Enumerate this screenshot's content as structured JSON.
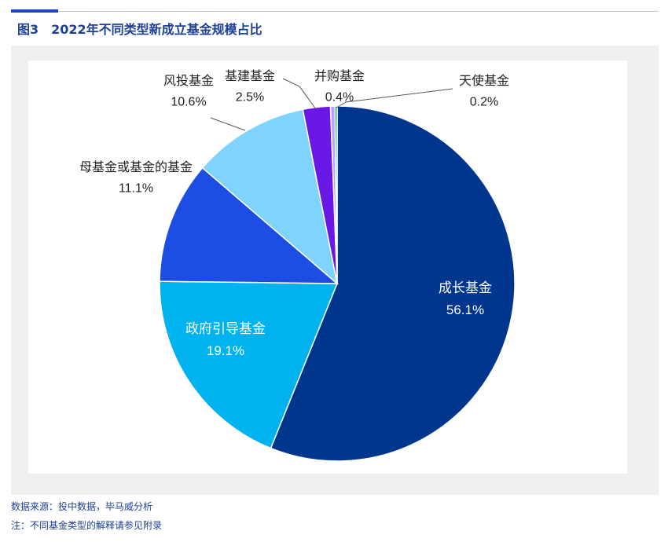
{
  "figure": {
    "label": "图3",
    "title": "2022年不同类型新成立基金规模占比"
  },
  "source_note": "数据来源：投中数据，毕马威分析",
  "footnote": "注：不同基金类型的解释请参见附录",
  "chart_data": {
    "type": "pie",
    "title": "2022年不同类型新成立基金规模占比",
    "start_angle_deg": 0,
    "direction": "clockwise",
    "label_format": "{name}\n{pct}",
    "slices": [
      {
        "name": "成长基金",
        "value": 56.1,
        "label": "56.1%",
        "color": "#00368e"
      },
      {
        "name": "政府引导基金",
        "value": 19.1,
        "label": "19.1%",
        "color": "#00b2ee"
      },
      {
        "name": "母基金或基金的基金",
        "value": 11.1,
        "label": "11.1%",
        "color": "#1d4ee4"
      },
      {
        "name": "风投基金",
        "value": 10.6,
        "label": "10.6%",
        "color": "#7fd3ff"
      },
      {
        "name": "基建基金",
        "value": 2.5,
        "label": "2.5%",
        "color": "#6a18e6"
      },
      {
        "name": "并购基金",
        "value": 0.4,
        "label": "0.4%",
        "color": "#b6a3ff"
      },
      {
        "name": "天使基金",
        "value": 0.2,
        "label": "0.2%",
        "color": "#0a8a8a"
      }
    ]
  }
}
